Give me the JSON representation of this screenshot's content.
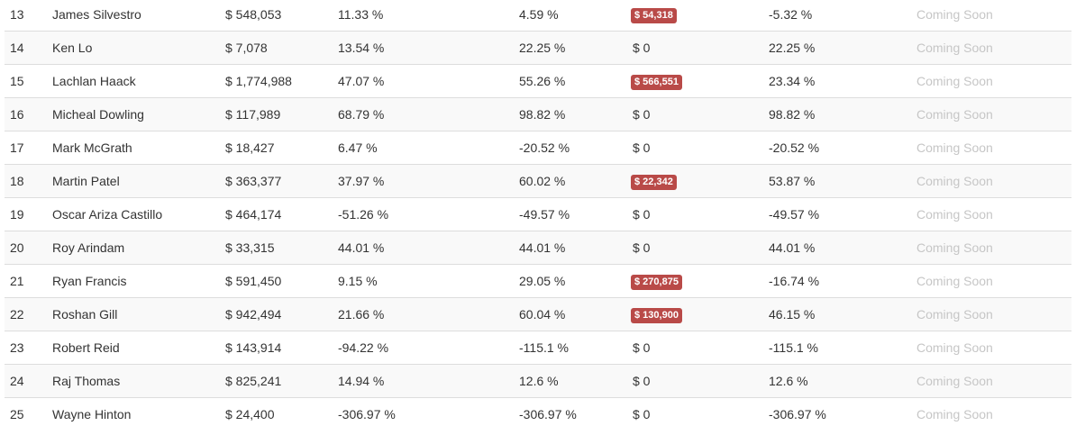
{
  "leaderboard": {
    "rows": [
      {
        "rank": "13",
        "name": "James Silvestro",
        "value": "$ 548,053",
        "pct1": "11.33 %",
        "pct2": "4.59 %",
        "amount": "$ 54,318",
        "amount_highlight": true,
        "pct3": "-5.32 %",
        "status": "Coming Soon"
      },
      {
        "rank": "14",
        "name": "Ken Lo",
        "value": "$ 7,078",
        "pct1": "13.54 %",
        "pct2": "22.25 %",
        "amount": "$ 0",
        "amount_highlight": false,
        "pct3": "22.25 %",
        "status": "Coming Soon"
      },
      {
        "rank": "15",
        "name": "Lachlan Haack",
        "value": "$ 1,774,988",
        "pct1": "47.07 %",
        "pct2": "55.26 %",
        "amount": "$ 566,551",
        "amount_highlight": true,
        "pct3": "23.34 %",
        "status": "Coming Soon"
      },
      {
        "rank": "16",
        "name": "Micheal Dowling",
        "value": "$ 117,989",
        "pct1": "68.79 %",
        "pct2": "98.82 %",
        "amount": "$ 0",
        "amount_highlight": false,
        "pct3": "98.82 %",
        "status": "Coming Soon"
      },
      {
        "rank": "17",
        "name": "Mark McGrath",
        "value": "$ 18,427",
        "pct1": "6.47 %",
        "pct2": "-20.52 %",
        "amount": "$ 0",
        "amount_highlight": false,
        "pct3": "-20.52 %",
        "status": "Coming Soon"
      },
      {
        "rank": "18",
        "name": "Martin Patel",
        "value": "$ 363,377",
        "pct1": "37.97 %",
        "pct2": "60.02 %",
        "amount": "$ 22,342",
        "amount_highlight": true,
        "pct3": "53.87 %",
        "status": "Coming Soon"
      },
      {
        "rank": "19",
        "name": "Oscar Ariza Castillo",
        "value": "$ 464,174",
        "pct1": "-51.26 %",
        "pct2": "-49.57 %",
        "amount": "$ 0",
        "amount_highlight": false,
        "pct3": "-49.57 %",
        "status": "Coming Soon"
      },
      {
        "rank": "20",
        "name": "Roy Arindam",
        "value": "$ 33,315",
        "pct1": "44.01 %",
        "pct2": "44.01 %",
        "amount": "$ 0",
        "amount_highlight": false,
        "pct3": "44.01 %",
        "status": "Coming Soon"
      },
      {
        "rank": "21",
        "name": "Ryan Francis",
        "value": "$ 591,450",
        "pct1": "9.15 %",
        "pct2": "29.05 %",
        "amount": "$ 270,875",
        "amount_highlight": true,
        "pct3": "-16.74 %",
        "status": "Coming Soon"
      },
      {
        "rank": "22",
        "name": "Roshan Gill",
        "value": "$ 942,494",
        "pct1": "21.66 %",
        "pct2": "60.04 %",
        "amount": "$ 130,900",
        "amount_highlight": true,
        "pct3": "46.15 %",
        "status": "Coming Soon"
      },
      {
        "rank": "23",
        "name": "Robert Reid",
        "value": "$ 143,914",
        "pct1": "-94.22 %",
        "pct2": "-115.1 %",
        "amount": "$ 0",
        "amount_highlight": false,
        "pct3": "-115.1 %",
        "status": "Coming Soon"
      },
      {
        "rank": "24",
        "name": "Raj Thomas",
        "value": "$ 825,241",
        "pct1": "14.94 %",
        "pct2": "12.6 %",
        "amount": "$ 0",
        "amount_highlight": false,
        "pct3": "12.6 %",
        "status": "Coming Soon"
      },
      {
        "rank": "25",
        "name": "Wayne Hinton",
        "value": "$ 24,400",
        "pct1": "-306.97 %",
        "pct2": "-306.97 %",
        "amount": "$ 0",
        "amount_highlight": false,
        "pct3": "-306.97 %",
        "status": "Coming Soon"
      }
    ]
  },
  "colors": {
    "highlight_badge": "#b94a48",
    "status_text": "#c6c6c6",
    "row_stripe": "#f9f9f9",
    "row_border": "#dddddd"
  }
}
